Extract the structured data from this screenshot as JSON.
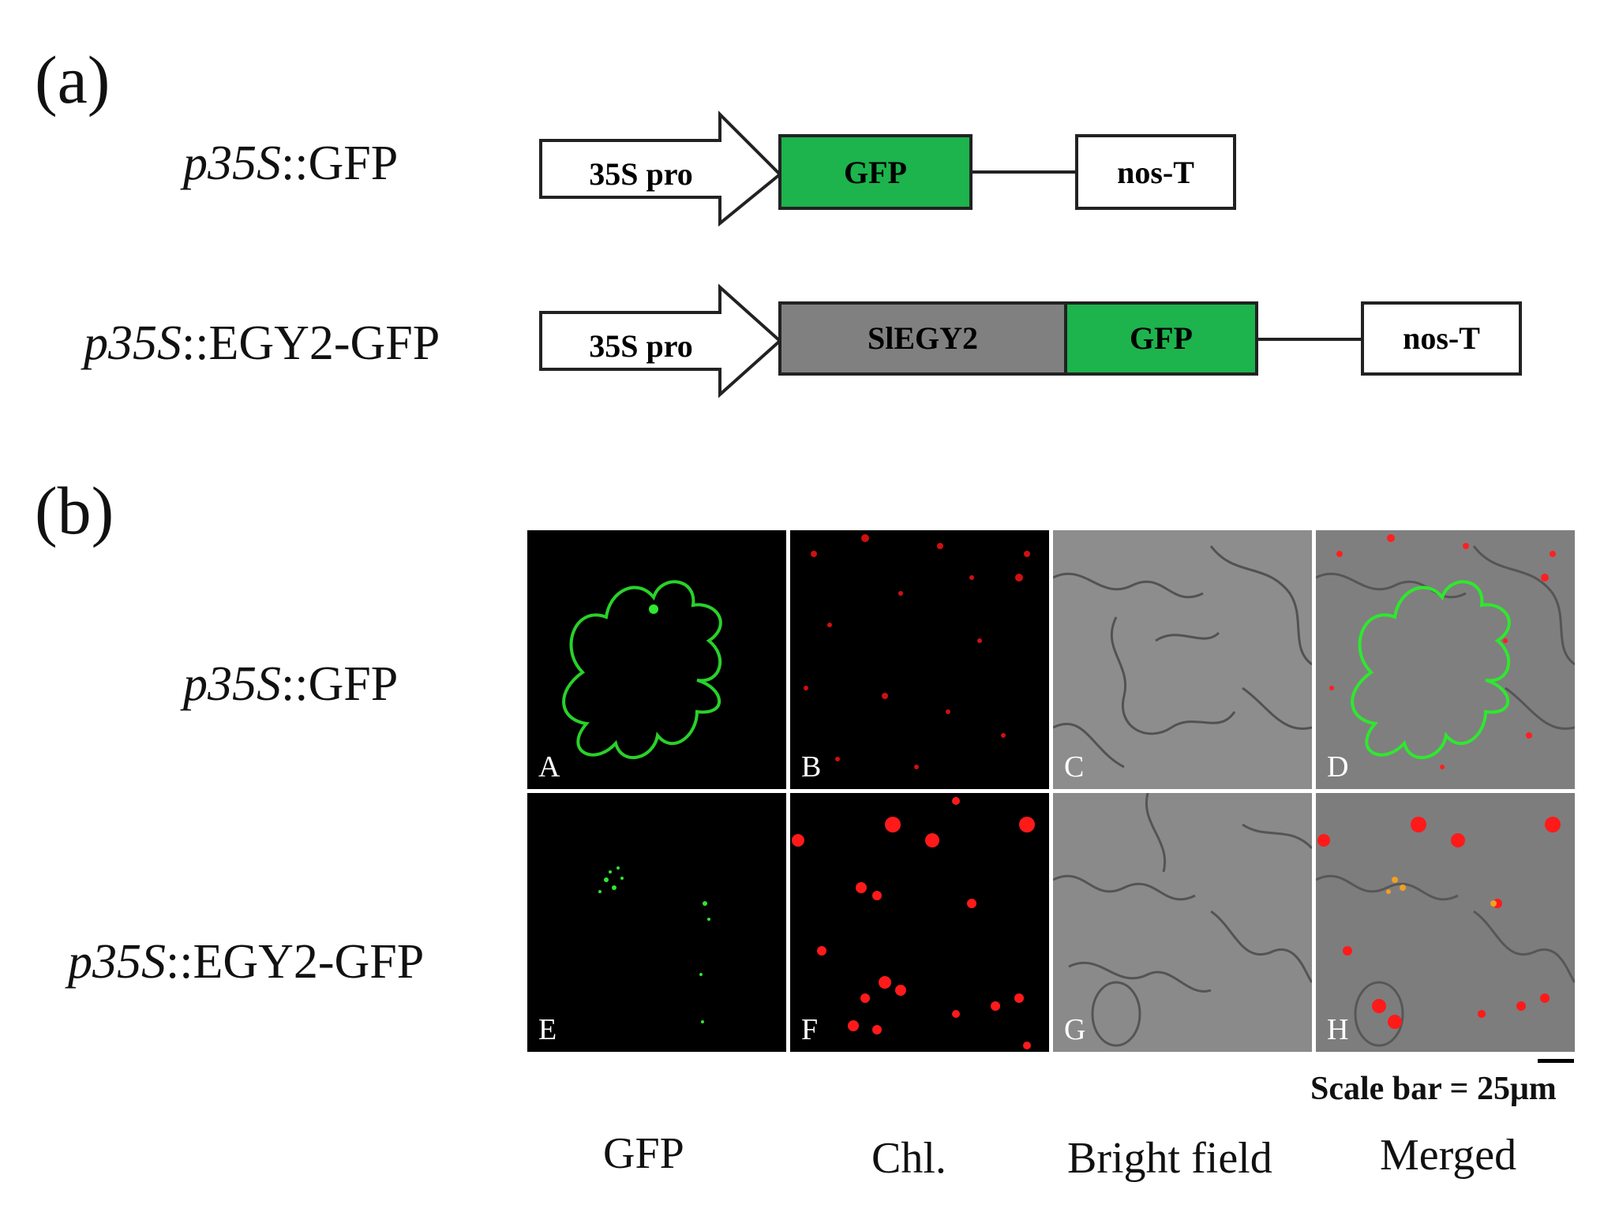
{
  "panels": {
    "a": "(a)",
    "b": "(b)"
  },
  "constructs": [
    {
      "prefix": "p35S",
      "suffix": "::GFP",
      "parts": {
        "promoter": "35S pro",
        "gene1": "GFP",
        "terminator": "nos-T"
      }
    },
    {
      "prefix": "p35S",
      "suffix": "::EGY2-GFP",
      "parts": {
        "promoter": "35S pro",
        "gene1": "SlEGY2",
        "gene2": "GFP",
        "terminator": "nos-T"
      }
    }
  ],
  "rows": [
    {
      "prefix": "p35S",
      "suffix": "::GFP"
    },
    {
      "prefix": "p35S",
      "suffix": "::EGY2-GFP"
    }
  ],
  "tiles": [
    "A",
    "B",
    "C",
    "D",
    "E",
    "F",
    "G",
    "H"
  ],
  "columns": [
    "GFP",
    "Chl.",
    "Bright field",
    "Merged"
  ],
  "scale_bar": "Scale bar = 25μm",
  "colors": {
    "gfp_box": "#1db34d",
    "egy_box": "#808080",
    "gfp_signal": "#2ee82e",
    "chl_signal": "#ff1a1a"
  }
}
